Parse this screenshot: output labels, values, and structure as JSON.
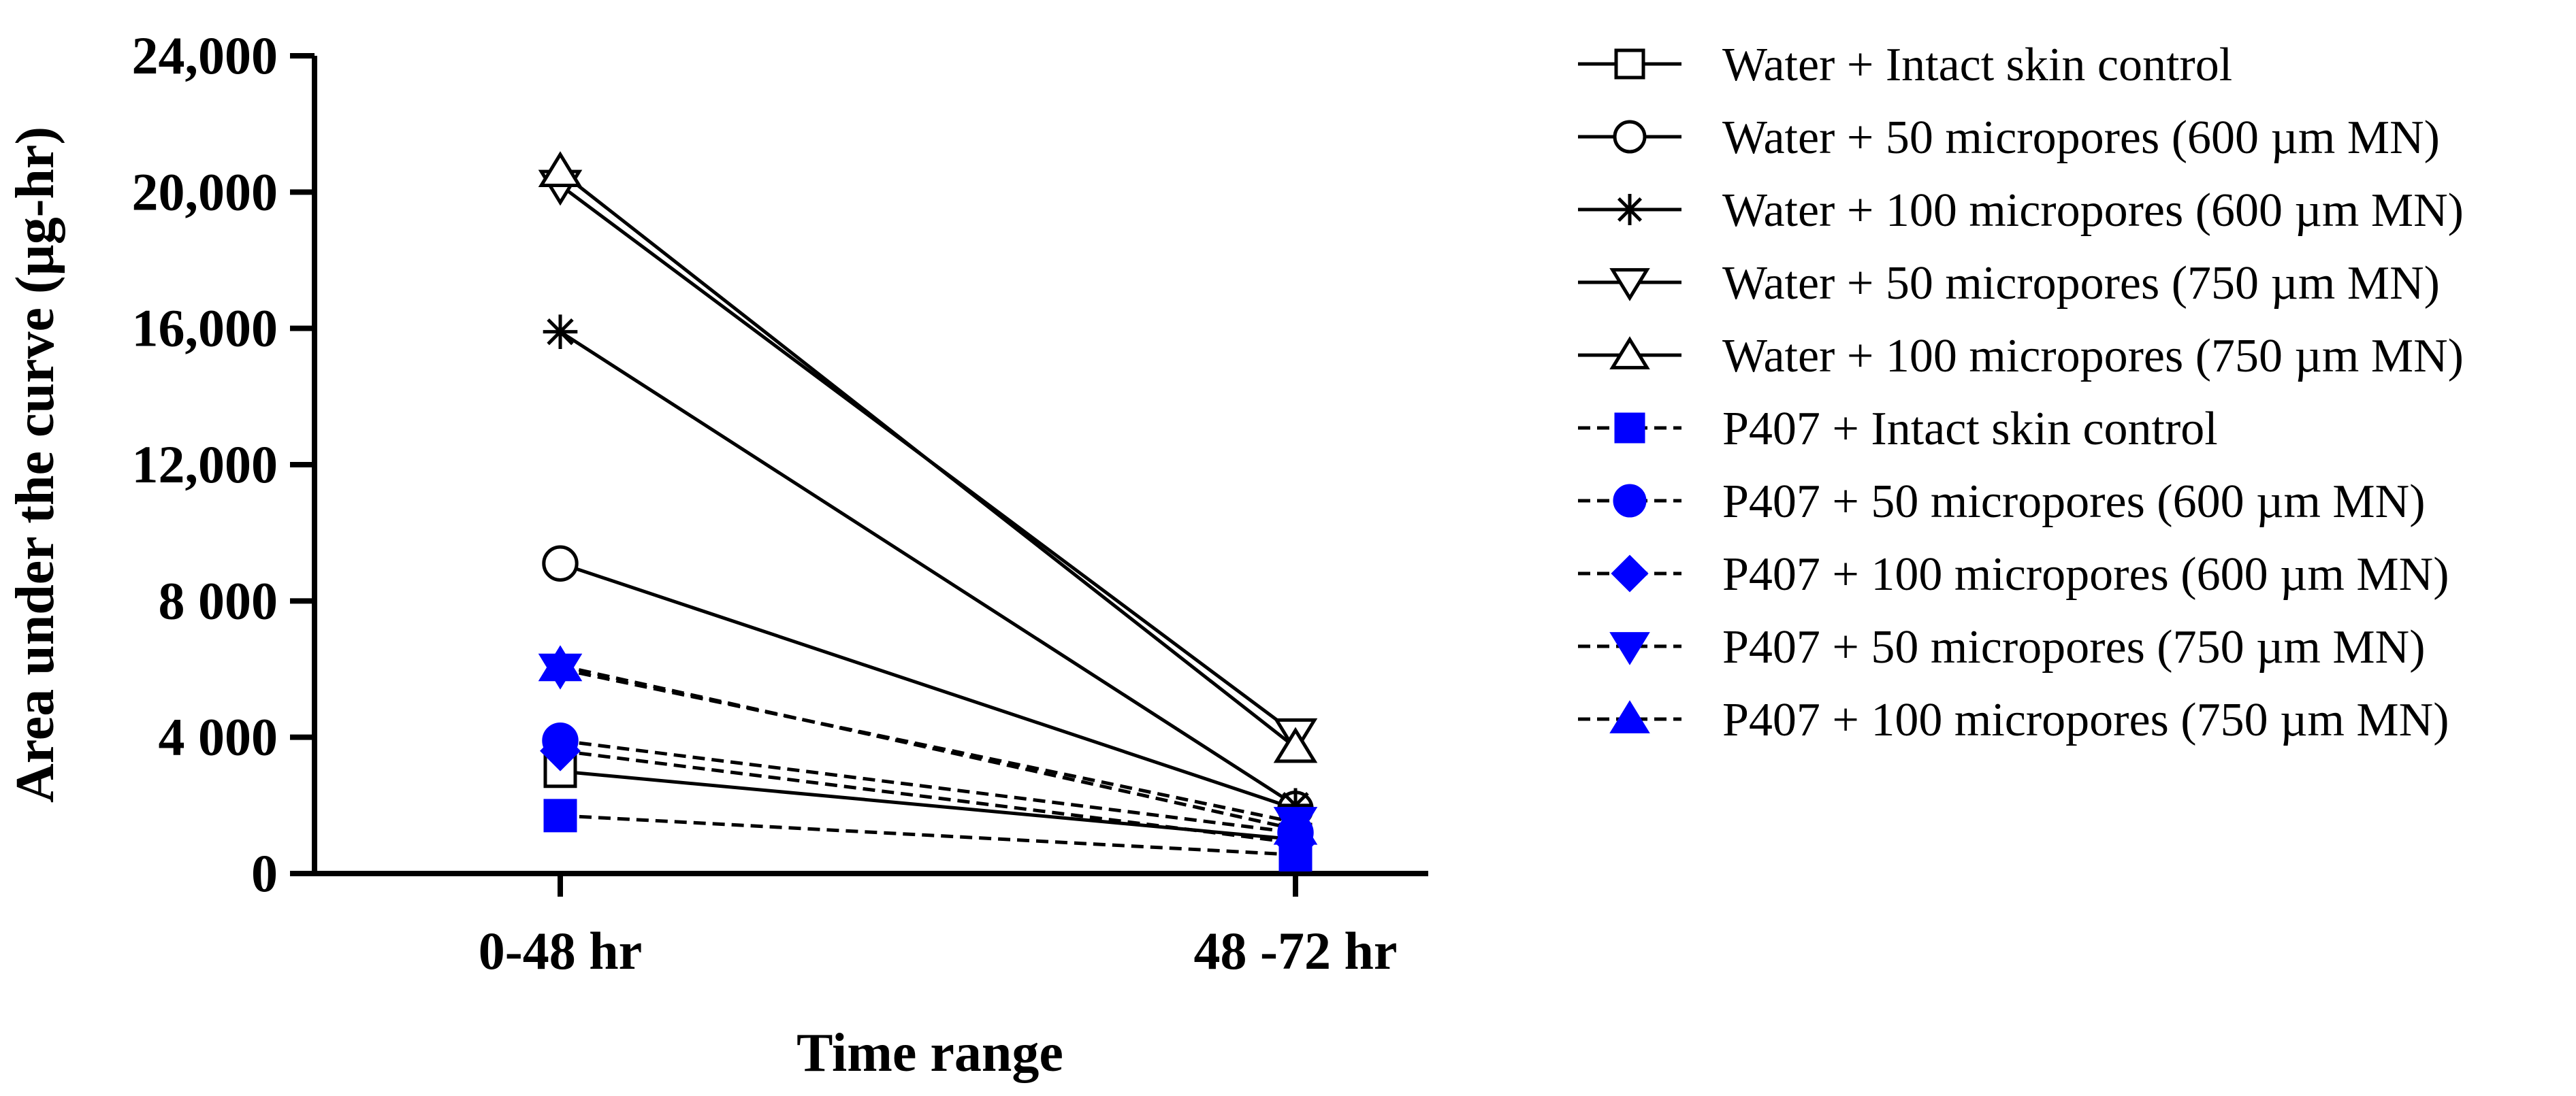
{
  "chart_data": {
    "type": "line",
    "title": "",
    "xlabel": "Time range",
    "ylabel": "Area under the curve (µg-hr)",
    "categories": [
      "0-48 hr",
      "48 -72 hr"
    ],
    "ylim": [
      0,
      24000
    ],
    "yticks": [
      {
        "value": 0,
        "label": "0"
      },
      {
        "value": 4000,
        "label": "4 000"
      },
      {
        "value": 8000,
        "label": "8 000"
      },
      {
        "value": 12000,
        "label": "12,000"
      },
      {
        "value": 16000,
        "label": "16,000"
      },
      {
        "value": 20000,
        "label": "20,000"
      },
      {
        "value": 24000,
        "label": "24,000"
      }
    ],
    "grid": false,
    "legend_position": "right",
    "series": [
      {
        "name": "Water + Intact skin control",
        "values": [
          3000,
          1000
        ],
        "marker": "square",
        "filled": false,
        "dashed": false,
        "color": "#000000"
      },
      {
        "name": "Water + 50 micropores (600 µm MN)",
        "values": [
          9100,
          1900
        ],
        "marker": "circle",
        "filled": false,
        "dashed": false,
        "color": "#000000"
      },
      {
        "name": "Water + 100 micropores (600 µm MN)",
        "values": [
          15900,
          2000
        ],
        "marker": "star",
        "filled": false,
        "dashed": false,
        "color": "#000000"
      },
      {
        "name": "Water + 50 micropores (750 µm MN)",
        "values": [
          20200,
          4100
        ],
        "marker": "triangle-down",
        "filled": false,
        "dashed": false,
        "color": "#000000"
      },
      {
        "name": "Water + 100 micropores (750 µm MN)",
        "values": [
          20600,
          3700
        ],
        "marker": "triangle-up",
        "filled": false,
        "dashed": false,
        "color": "#000000"
      },
      {
        "name": "P407 + Intact skin control",
        "values": [
          1700,
          550
        ],
        "marker": "square",
        "filled": true,
        "dashed": true,
        "color": "#0000ff"
      },
      {
        "name": "P407 + 50 micropores (600 µm MN)",
        "values": [
          3900,
          1200
        ],
        "marker": "circle",
        "filled": true,
        "dashed": true,
        "color": "#0000ff"
      },
      {
        "name": "P407 + 100 micropores (600 µm MN)",
        "values": [
          3600,
          900
        ],
        "marker": "diamond",
        "filled": true,
        "dashed": true,
        "color": "#0000ff"
      },
      {
        "name": "P407 + 50 micropores (750 µm MN)",
        "values": [
          6000,
          1500
        ],
        "marker": "triangle-down",
        "filled": true,
        "dashed": true,
        "color": "#0000ff"
      },
      {
        "name": "P407 + 100 micropores (750 µm MN)",
        "values": [
          6100,
          1300
        ],
        "marker": "triangle-up",
        "filled": true,
        "dashed": true,
        "color": "#0000ff"
      }
    ]
  }
}
